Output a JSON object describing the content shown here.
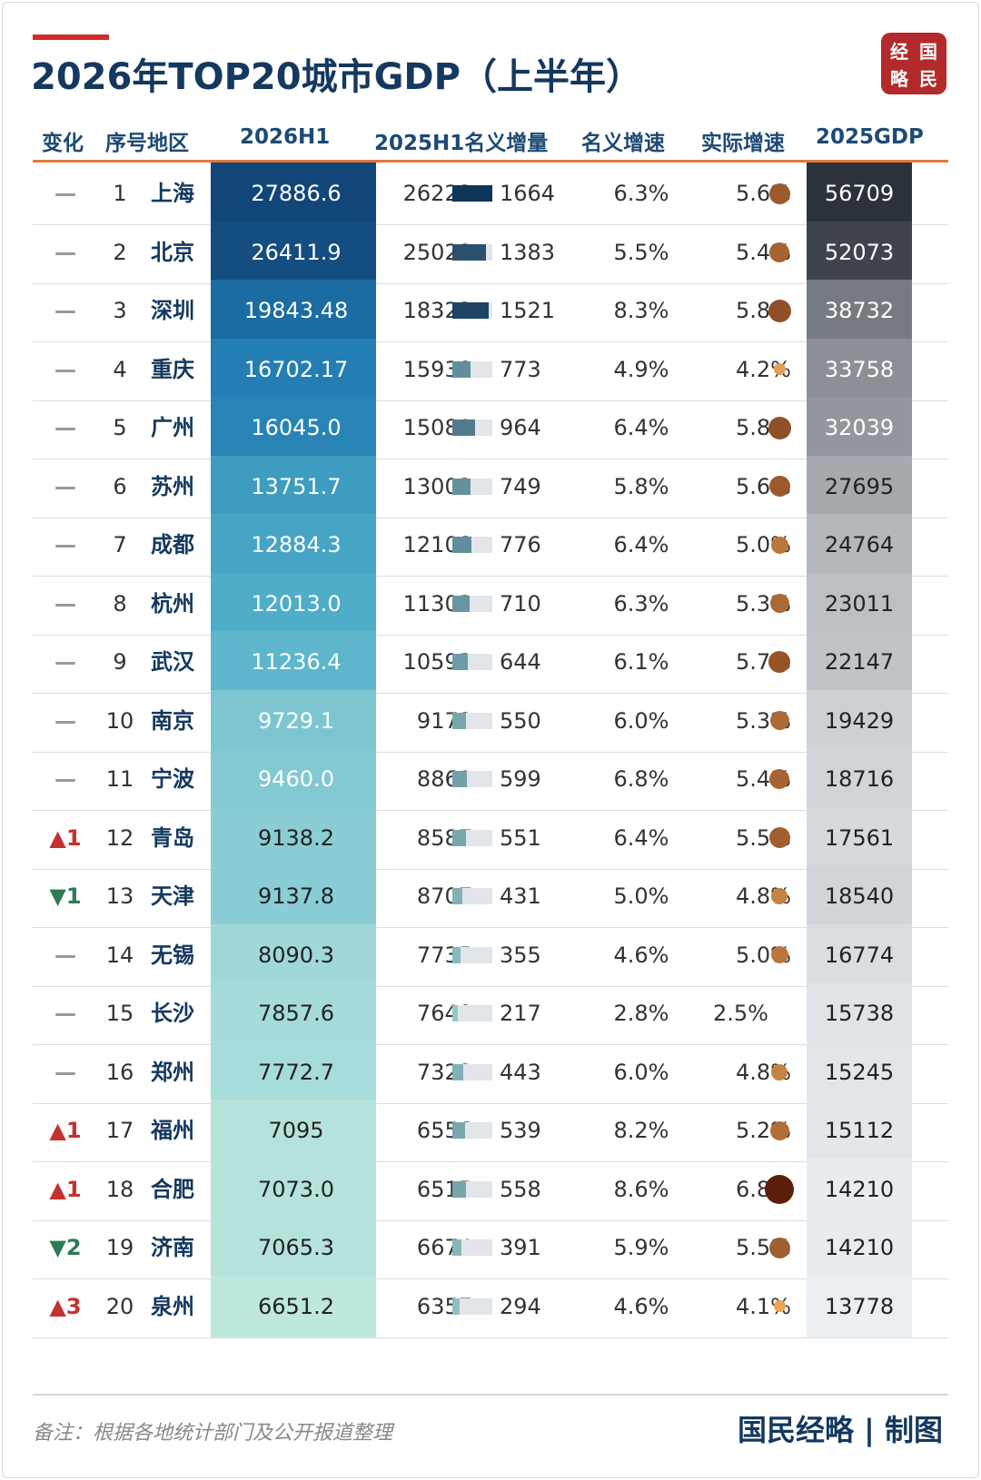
{
  "title": "2026年TOP20城市GDP（上半年）",
  "logo": {
    "chars": [
      "经",
      "国",
      "略",
      "民"
    ]
  },
  "columns": [
    "变化",
    "序号地区",
    "2026H1",
    "2025H1名义增量",
    "名义增速",
    "实际增速",
    "2025GDP"
  ],
  "chart_data": {
    "type": "table",
    "rows": [
      {
        "change": "—",
        "rank": "1",
        "city": "上海",
        "h1_2026": "27886.6",
        "h1_2025": "26222",
        "increase": "1664",
        "nominal": "6.3%",
        "real": "5.6%",
        "gdp_2025": "56709"
      },
      {
        "change": "—",
        "rank": "2",
        "city": "北京",
        "h1_2026": "26411.9",
        "h1_2025": "25029",
        "increase": "1383",
        "nominal": "5.5%",
        "real": "5.4%",
        "gdp_2025": "52073"
      },
      {
        "change": "—",
        "rank": "3",
        "city": "深圳",
        "h1_2026": "19843.48",
        "h1_2025": "18322",
        "increase": "1521",
        "nominal": "8.3%",
        "real": "5.8%",
        "gdp_2025": "38732"
      },
      {
        "change": "—",
        "rank": "4",
        "city": "重庆",
        "h1_2026": "16702.17",
        "h1_2025": "15930",
        "increase": "773",
        "nominal": "4.9%",
        "real": "4.2%",
        "gdp_2025": "33758"
      },
      {
        "change": "—",
        "rank": "5",
        "city": "广州",
        "h1_2026": "16045.0",
        "h1_2025": "15081",
        "increase": "964",
        "nominal": "6.4%",
        "real": "5.8%",
        "gdp_2025": "32039"
      },
      {
        "change": "—",
        "rank": "6",
        "city": "苏州",
        "h1_2026": "13751.7",
        "h1_2025": "13002",
        "increase": "749",
        "nominal": "5.8%",
        "real": "5.6%",
        "gdp_2025": "27695"
      },
      {
        "change": "—",
        "rank": "7",
        "city": "成都",
        "h1_2026": "12884.3",
        "h1_2025": "12108",
        "increase": "776",
        "nominal": "6.4%",
        "real": "5.0%",
        "gdp_2025": "24764"
      },
      {
        "change": "—",
        "rank": "8",
        "city": "杭州",
        "h1_2026": "12013.0",
        "h1_2025": "11303",
        "increase": "710",
        "nominal": "6.3%",
        "real": "5.3%",
        "gdp_2025": "23011"
      },
      {
        "change": "—",
        "rank": "9",
        "city": "武汉",
        "h1_2026": "11236.4",
        "h1_2025": "10593",
        "increase": "644",
        "nominal": "6.1%",
        "real": "5.7%",
        "gdp_2025": "22147"
      },
      {
        "change": "—",
        "rank": "10",
        "city": "南京",
        "h1_2026": "9729.1",
        "h1_2025": "9179",
        "increase": "550",
        "nominal": "6.0%",
        "real": "5.3%",
        "gdp_2025": "19429"
      },
      {
        "change": "—",
        "rank": "11",
        "city": "宁波",
        "h1_2026": "9460.0",
        "h1_2025": "8861",
        "increase": "599",
        "nominal": "6.8%",
        "real": "5.4%",
        "gdp_2025": "18716"
      },
      {
        "change": "▲1",
        "rank": "12",
        "city": "青岛",
        "h1_2026": "9138.2",
        "h1_2025": "8587",
        "increase": "551",
        "nominal": "6.4%",
        "real": "5.5%",
        "gdp_2025": "17561"
      },
      {
        "change": "▼1",
        "rank": "13",
        "city": "天津",
        "h1_2026": "9137.8",
        "h1_2025": "8707",
        "increase": "431",
        "nominal": "5.0%",
        "real": "4.8%",
        "gdp_2025": "18540"
      },
      {
        "change": "—",
        "rank": "14",
        "city": "无锡",
        "h1_2026": "8090.3",
        "h1_2025": "7735",
        "increase": "355",
        "nominal": "4.6%",
        "real": "5.0%",
        "gdp_2025": "16774"
      },
      {
        "change": "—",
        "rank": "15",
        "city": "长沙",
        "h1_2026": "7857.6",
        "h1_2025": "7640",
        "increase": "217",
        "nominal": "2.8%",
        "real": "2.5%",
        "gdp_2025": "15738"
      },
      {
        "change": "—",
        "rank": "16",
        "city": "郑州",
        "h1_2026": "7772.7",
        "h1_2025": "7329",
        "increase": "443",
        "nominal": "6.0%",
        "real": "4.8%",
        "gdp_2025": "15245"
      },
      {
        "change": "▲1",
        "rank": "17",
        "city": "福州",
        "h1_2026": "7095",
        "h1_2025": "6556",
        "increase": "539",
        "nominal": "8.2%",
        "real": "5.2%",
        "gdp_2025": "15112"
      },
      {
        "change": "▲1",
        "rank": "18",
        "city": "合肥",
        "h1_2026": "7073.0",
        "h1_2025": "6515",
        "increase": "558",
        "nominal": "8.6%",
        "real": "6.8%",
        "gdp_2025": "14210"
      },
      {
        "change": "▼2",
        "rank": "19",
        "city": "济南",
        "h1_2026": "7065.3",
        "h1_2025": "6674",
        "increase": "391",
        "nominal": "5.9%",
        "real": "5.5%",
        "gdp_2025": "14210"
      },
      {
        "change": "▲3",
        "rank": "20",
        "city": "泉州",
        "h1_2026": "6651.2",
        "h1_2025": "6357",
        "increase": "294",
        "nominal": "4.6%",
        "real": "4.1%",
        "gdp_2025": "13778"
      }
    ]
  },
  "footer": {
    "note": "备注：根据各地统计部门及公开报道整理",
    "credit": "国民经略 | 制图"
  }
}
